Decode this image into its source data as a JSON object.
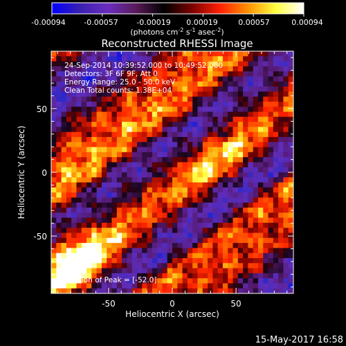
{
  "colorbar": {
    "ticks": [
      "-0.00094",
      "-0.00057",
      "-0.00019",
      "0.00019",
      "0.00057",
      "0.00094"
    ],
    "units": "(photons cm",
    "units_exp1": "-2",
    "units_mid": " s",
    "units_exp2": "-1",
    "units_end": " asec",
    "units_exp3": "-2",
    "units_close": ")",
    "colors": [
      "#0000ff",
      "#3a1fb0",
      "#6a2dbf",
      "#5a1a5a",
      "#000000",
      "#7a0000",
      "#ff2000",
      "#ff9000",
      "#ffff40",
      "#ffffff"
    ]
  },
  "title": "Reconstructed RHESSI Image",
  "annotations": {
    "time": "24-Sep-2014 10:39:52.000 to 10:49:52.000",
    "detectors": "Detectors: 3F 6F 9F, Att 0",
    "energy": "Energy Range: 25.0 - 50.0 keV",
    "clean": "Clean    Total counts: 1.38E+04",
    "peak": "Position of Peak = [-52.0]"
  },
  "footer": {
    "timestamp": "15-May-2017 16:58"
  },
  "chart_data": {
    "type": "heatmap",
    "title": "Reconstructed RHESSI Image",
    "xlabel": "Heliocentric X (arcsec)",
    "ylabel": "Heliocentric Y (arcsec)",
    "xlim": [
      -95,
      95
    ],
    "ylim": [
      -95,
      95
    ],
    "xticks": [
      "-50",
      "0",
      "50"
    ],
    "xtick_values": [
      -50,
      0,
      50
    ],
    "yticks": [
      "50",
      "0",
      "-50"
    ],
    "ytick_values": [
      50,
      0,
      -50
    ],
    "colorscale_range": [
      -0.00094,
      0.00094
    ],
    "colormap": "blue-purple-black-red-yellow-white",
    "peak_x": -52.0,
    "grid": false
  }
}
